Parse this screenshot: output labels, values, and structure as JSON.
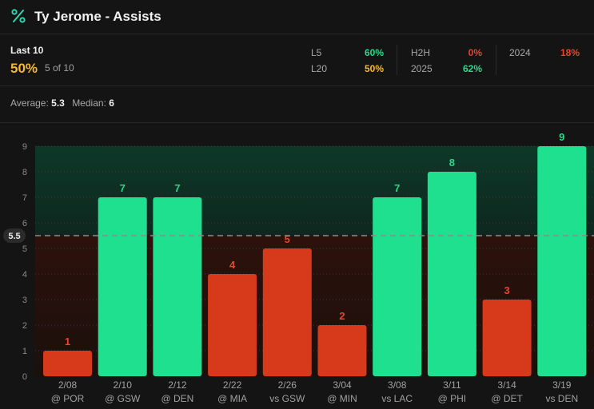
{
  "header": {
    "title": "Ty Jerome - Assists",
    "icon": "percent-icon"
  },
  "summary": {
    "last10_label": "Last 10",
    "last10_pct": "50%",
    "last10_count": "5 of 10",
    "stats": [
      {
        "label": "L5",
        "value": "60%",
        "color": "#27d98c"
      },
      {
        "label": "L20",
        "value": "50%",
        "color": "#f5b82e"
      },
      {
        "label": "H2H",
        "value": "0%",
        "color": "#e8452a"
      },
      {
        "label": "2025",
        "value": "62%",
        "color": "#27d98c"
      },
      {
        "label": "2024",
        "value": "18%",
        "color": "#e8452a"
      }
    ],
    "average_label": "Average:",
    "average_value": "5.3",
    "median_label": "Median:",
    "median_value": "6"
  },
  "colors": {
    "over": "#1ee08f",
    "under": "#d63a1a",
    "over_text": "#27d98c",
    "under_text": "#e8452a"
  },
  "chart_data": {
    "type": "bar",
    "title": "Ty Jerome - Assists",
    "categories": [
      "2/08",
      "2/10",
      "2/12",
      "2/22",
      "2/26",
      "3/04",
      "3/08",
      "3/11",
      "3/14",
      "3/19"
    ],
    "opponents": [
      "@ POR",
      "@ GSW",
      "@ DEN",
      "@ MIA",
      "vs GSW",
      "@ MIN",
      "vs LAC",
      "@ PHI",
      "@ DET",
      "vs DEN"
    ],
    "values": [
      1,
      7,
      7,
      4,
      5,
      2,
      7,
      8,
      3,
      9
    ],
    "line": 5.5,
    "line_label": "5.5",
    "ylim": [
      0,
      9
    ],
    "yticks": [
      "0",
      "1",
      "2",
      "3",
      "4",
      "5",
      "6",
      "7",
      "8",
      "9"
    ],
    "xlabel": "",
    "ylabel": ""
  }
}
